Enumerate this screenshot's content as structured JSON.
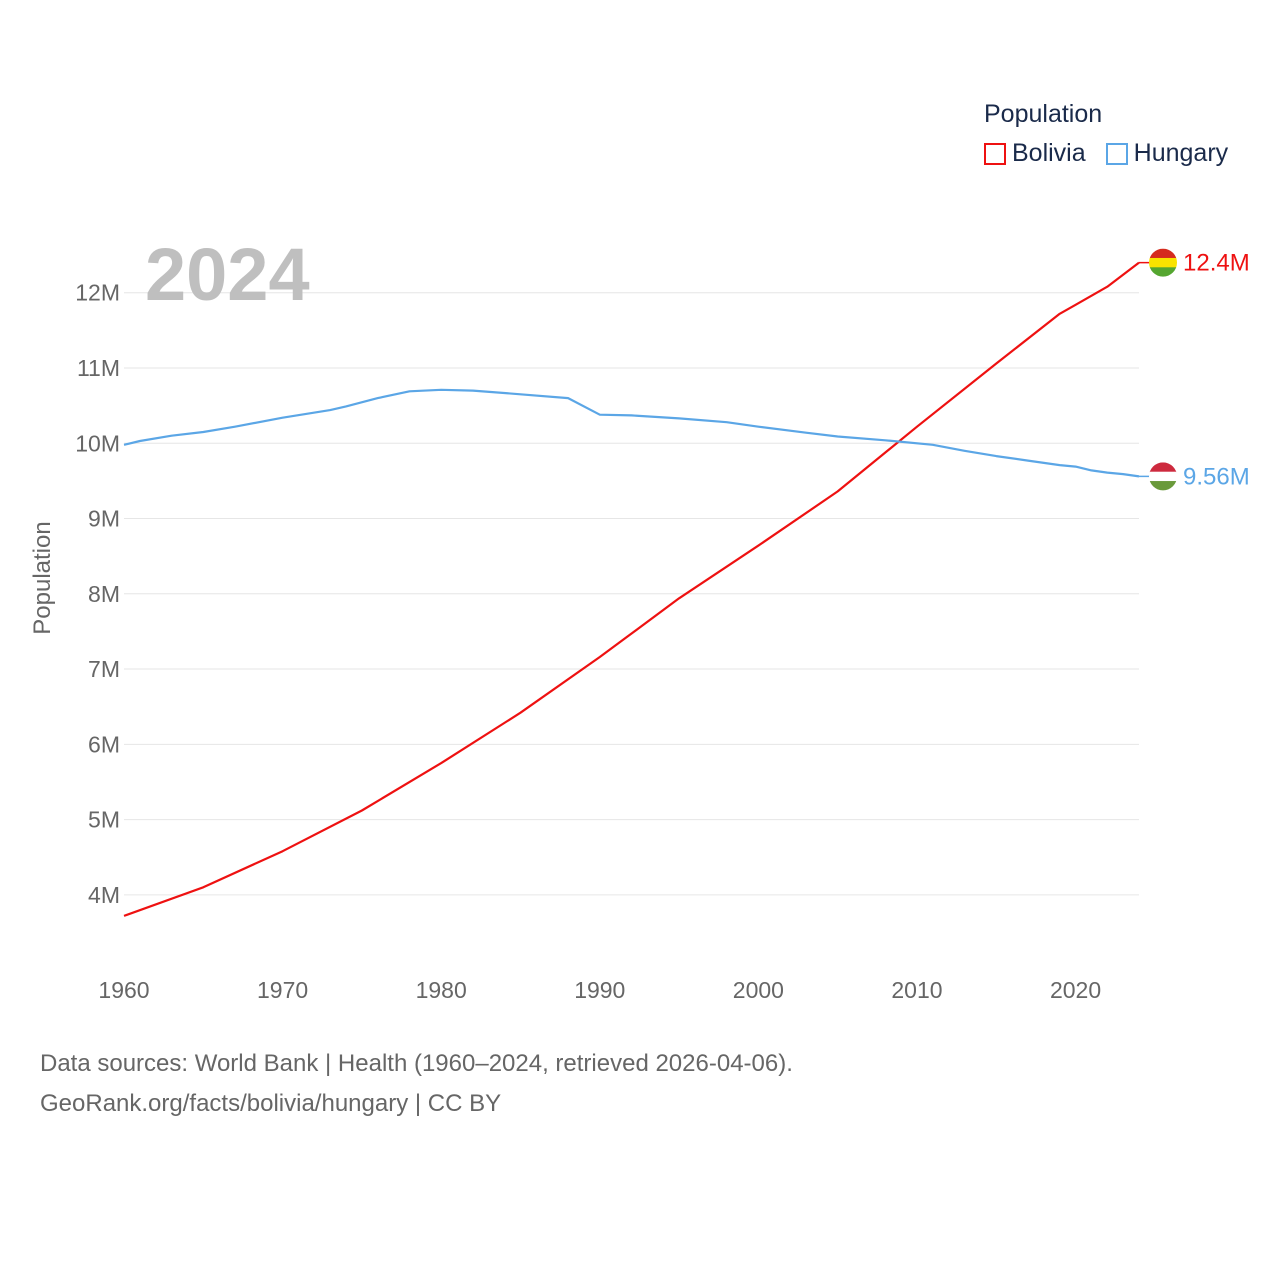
{
  "chart_data": {
    "type": "line",
    "title": "Population",
    "year_label": "2024",
    "ylabel": "Population",
    "xlim": [
      1960,
      2024
    ],
    "ylim": [
      3.4,
      12.9
    ],
    "x_ticks": [
      1960,
      1970,
      1980,
      1990,
      2000,
      2010,
      2020
    ],
    "y_ticks": [
      {
        "value": 4,
        "label": "4M"
      },
      {
        "value": 5,
        "label": "5M"
      },
      {
        "value": 6,
        "label": "6M"
      },
      {
        "value": 7,
        "label": "7M"
      },
      {
        "value": 8,
        "label": "8M"
      },
      {
        "value": 9,
        "label": "9M"
      },
      {
        "value": 10,
        "label": "10M"
      },
      {
        "value": 11,
        "label": "11M"
      },
      {
        "value": 12,
        "label": "12M"
      }
    ],
    "units": "millions",
    "series": [
      {
        "name": "Bolivia",
        "color": "#ee1111",
        "end_label": "12.4M",
        "flag": "bolivia-flag",
        "points": [
          [
            1960,
            3.72
          ],
          [
            1965,
            4.1
          ],
          [
            1970,
            4.58
          ],
          [
            1975,
            5.12
          ],
          [
            1980,
            5.75
          ],
          [
            1985,
            6.42
          ],
          [
            1990,
            7.16
          ],
          [
            1995,
            7.94
          ],
          [
            2000,
            8.64
          ],
          [
            2005,
            9.36
          ],
          [
            2010,
            10.22
          ],
          [
            2015,
            11.06
          ],
          [
            2019,
            11.72
          ],
          [
            2020,
            11.84
          ],
          [
            2022,
            12.08
          ],
          [
            2024,
            12.4
          ]
        ]
      },
      {
        "name": "Hungary",
        "color": "#5ba6e6",
        "end_label": "9.56M",
        "flag": "hungary-flag",
        "points": [
          [
            1960,
            9.98
          ],
          [
            1961,
            10.03
          ],
          [
            1963,
            10.1
          ],
          [
            1965,
            10.15
          ],
          [
            1967,
            10.22
          ],
          [
            1970,
            10.34
          ],
          [
            1973,
            10.44
          ],
          [
            1974,
            10.49
          ],
          [
            1976,
            10.6
          ],
          [
            1978,
            10.69
          ],
          [
            1980,
            10.71
          ],
          [
            1982,
            10.7
          ],
          [
            1985,
            10.65
          ],
          [
            1988,
            10.6
          ],
          [
            1990,
            10.38
          ],
          [
            1992,
            10.37
          ],
          [
            1995,
            10.33
          ],
          [
            1998,
            10.28
          ],
          [
            2000,
            10.22
          ],
          [
            2003,
            10.14
          ],
          [
            2005,
            10.09
          ],
          [
            2008,
            10.04
          ],
          [
            2011,
            9.98
          ],
          [
            2013,
            9.9
          ],
          [
            2015,
            9.83
          ],
          [
            2017,
            9.77
          ],
          [
            2019,
            9.71
          ],
          [
            2020,
            9.69
          ],
          [
            2021,
            9.64
          ],
          [
            2022,
            9.61
          ],
          [
            2023,
            9.59
          ],
          [
            2024,
            9.56
          ]
        ]
      }
    ]
  },
  "legend": {
    "title": "Population",
    "items": [
      {
        "label": "Bolivia",
        "color": "#ee1111"
      },
      {
        "label": "Hungary",
        "color": "#5ba6e6"
      }
    ]
  },
  "footer": {
    "source_line": "Data sources: World Bank | Health (1960–2024, retrieved 2026-04-06).",
    "credit_line": "GeoRank.org/facts/bolivia/hungary | CC BY"
  }
}
